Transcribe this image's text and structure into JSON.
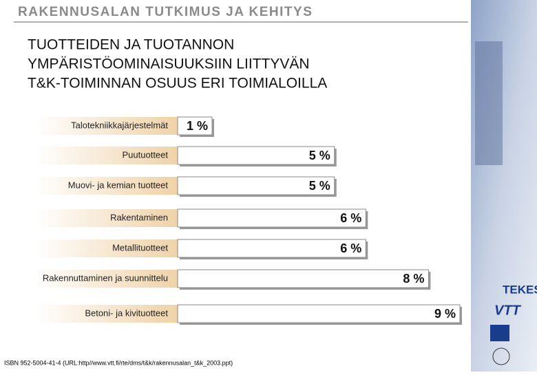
{
  "header": "RAKENNUSALAN TUTKIMUS JA KEHITYS",
  "chart_data": {
    "type": "bar",
    "title": [
      "TUOTTEIDEN JA TUOTANNON",
      "YMPÄRISTÖOMINAISUUKSIIN LIITTYVÄN",
      "T&K-TOIMINNAN OSUUS ERI TOIMIALOILLA"
    ],
    "categories": [
      "Talotekniikkajärjestelmät",
      "Puutuotteet",
      "Muovi- ja kemian tuotteet",
      "Rakentaminen",
      "Metallituotteet",
      "Rakennuttaminen ja suunnittelu",
      "Betoni- ja kivituotteet"
    ],
    "values": [
      1,
      5,
      5,
      6,
      6,
      8,
      9
    ],
    "value_labels": [
      "1 %",
      "5 %",
      "5 %",
      "6 %",
      "6 %",
      "8 %",
      "9 %"
    ],
    "color": "#ffffff"
  },
  "footer": "ISBN 952-5004-41-4 (URL:http//www.vtt.fi/rte/dms/t&k/rakennusalan_t&k_2003.ppt)",
  "logos": [
    "TEKES",
    "VTT"
  ]
}
